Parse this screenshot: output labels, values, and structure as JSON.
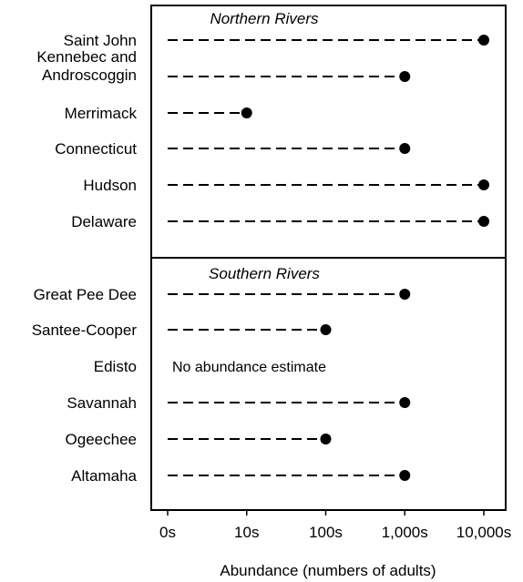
{
  "chart_data": {
    "type": "dot",
    "title": "",
    "xlabel": "Abundance (numbers of adults)",
    "ylabel": "",
    "x_scale": "log",
    "x_ticks": [
      "0s",
      "10s",
      "100s",
      "1,000s",
      "10,000s"
    ],
    "x_tick_values": [
      1,
      10,
      100,
      1000,
      10000
    ],
    "xlim": [
      1,
      10000
    ],
    "panels": [
      {
        "title": "Northern Rivers",
        "rows": [
          {
            "label": "Saint John",
            "value": 10000
          },
          {
            "label": "Kennebec and\nAndroscoggin",
            "value": 1000
          },
          {
            "label": "Merrimack",
            "value": 10
          },
          {
            "label": "Connecticut",
            "value": 1000
          },
          {
            "label": "Hudson",
            "value": 10000
          },
          {
            "label": "Delaware",
            "value": 10000
          }
        ]
      },
      {
        "title": "Southern Rivers",
        "rows": [
          {
            "label": "Great Pee Dee",
            "value": 1000
          },
          {
            "label": "Santee-Cooper",
            "value": 100
          },
          {
            "label": "Edisto",
            "value": null,
            "note": "No abundance estimate"
          },
          {
            "label": "Savannah",
            "value": 1000
          },
          {
            "label": "Ogeechee",
            "value": 100
          },
          {
            "label": "Altamaha",
            "value": 1000
          }
        ]
      }
    ],
    "grid": false,
    "legend": "none"
  }
}
